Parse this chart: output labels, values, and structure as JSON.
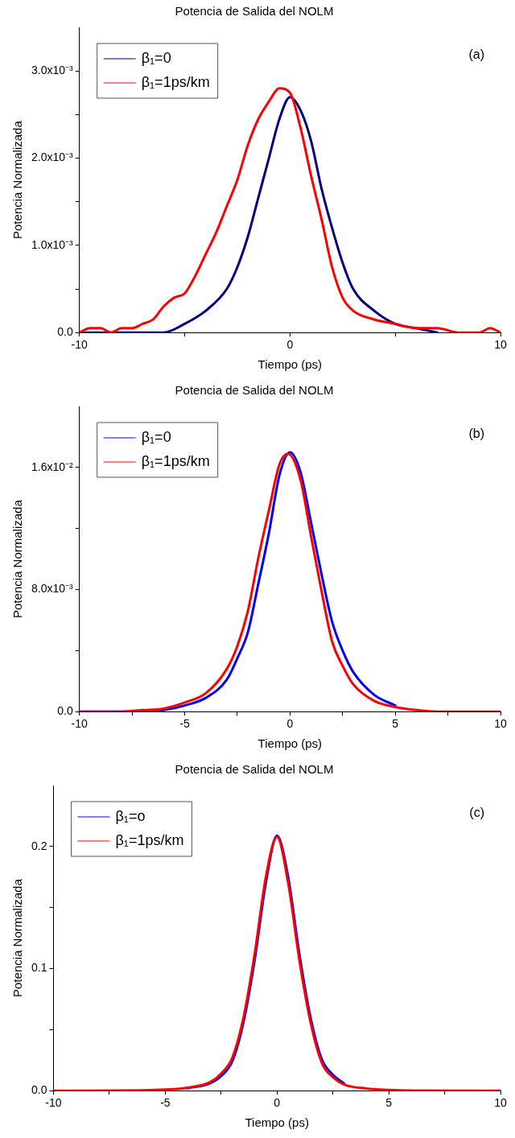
{
  "chart_data": [
    {
      "type": "line",
      "title": "Potencia de Salida del NOLM",
      "xlabel": "Tiempo (ps)",
      "ylabel": "Potencia Normalizada",
      "annotations": [
        "(a)"
      ],
      "legend": "top left",
      "grid": false,
      "marker": "none",
      "line_style": "solid",
      "xlim": [
        -10,
        10
      ],
      "xticks": [
        -10,
        {
          "value": -5,
          "label": null
        },
        0,
        {
          "value": 5,
          "label": null
        },
        10
      ],
      "ylim": [
        0,
        0.0035
      ],
      "yticks": [
        {
          "value": 0,
          "label": "0.0"
        },
        {
          "value": 0.0005,
          "label": null
        },
        {
          "value": 0.001,
          "label": "1.0x10⁻³"
        },
        {
          "value": 0.0015,
          "label": null
        },
        {
          "value": 0.002,
          "label": "2.0x10⁻³"
        },
        {
          "value": 0.0025,
          "label": null
        },
        {
          "value": 0.003,
          "label": "3.0x10⁻³"
        }
      ],
      "series": [
        {
          "name": "β₁=0",
          "color": "#000080",
          "x": [
            -10,
            -8,
            -6,
            -5,
            -4,
            -3,
            -2.5,
            -2,
            -1.5,
            -1,
            -0.5,
            0,
            0.5,
            1,
            1.5,
            2,
            2.5,
            3,
            4,
            5,
            6,
            7
          ],
          "values": [
            0,
            0,
            0,
            0.0001,
            0.00025,
            0.0005,
            0.00075,
            0.0011,
            0.00155,
            0.002,
            0.00245,
            0.0027,
            0.00255,
            0.0022,
            0.00165,
            0.0012,
            0.0008,
            0.0005,
            0.00025,
            0.0001,
            5e-05,
            0
          ]
        },
        {
          "name": "β₁=1ps/km",
          "color": "#ff0000",
          "x": [
            -10,
            -9.5,
            -9,
            -8.5,
            -8,
            -7.5,
            -7,
            -6.5,
            -6,
            -5.5,
            -5,
            -4.5,
            -4,
            -3.5,
            -3,
            -2.5,
            -2,
            -1.5,
            -1,
            -0.5,
            0,
            0.5,
            1,
            1.5,
            2,
            2.5,
            3,
            4,
            5,
            6,
            7,
            8,
            9,
            9.5,
            10
          ],
          "values": [
            0,
            5e-05,
            5e-05,
            0,
            5e-05,
            5e-05,
            0.0001,
            0.00015,
            0.0003,
            0.0004,
            0.00045,
            0.00065,
            0.0009,
            0.00115,
            0.00145,
            0.00175,
            0.00215,
            0.00245,
            0.00265,
            0.0028,
            0.00275,
            0.00235,
            0.0018,
            0.0013,
            0.00075,
            0.0004,
            0.00025,
            0.00015,
            0.0001,
            5e-05,
            5e-05,
            0,
            0,
            5e-05,
            0
          ]
        }
      ]
    },
    {
      "type": "line",
      "title": "Potencia de Salida del NOLM",
      "xlabel": "Tiempo (ps)",
      "ylabel": "Potencia Normalizada",
      "annotations": [
        "(b)"
      ],
      "legend": "top left",
      "grid": false,
      "marker": "none",
      "line_style": "solid",
      "xlim": [
        -10,
        10
      ],
      "xticks": [
        -10,
        {
          "value": -7.5,
          "label": null
        },
        -5,
        {
          "value": -2.5,
          "label": null
        },
        0,
        {
          "value": 2.5,
          "label": null
        },
        5,
        {
          "value": 7.5,
          "label": null
        },
        10
      ],
      "ylim": [
        0,
        0.02
      ],
      "yticks": [
        {
          "value": 0,
          "label": "0.0"
        },
        {
          "value": 0.004,
          "label": null
        },
        {
          "value": 0.008,
          "label": "8.0x10⁻³"
        },
        {
          "value": 0.012,
          "label": null
        },
        {
          "value": 0.016,
          "label": "1.6x10⁻²"
        }
      ],
      "series": [
        {
          "name": "β₁=0",
          "color": "#0000ff",
          "x": [
            -10,
            -8,
            -7,
            -6,
            -5,
            -4,
            -3,
            -2.5,
            -2,
            -1.5,
            -1,
            -0.5,
            0,
            0.5,
            1,
            1.5,
            2,
            2.5,
            3,
            4,
            5
          ],
          "values": [
            0,
            0,
            0,
            0.0001,
            0.0004,
            0.0009,
            0.0021,
            0.0035,
            0.0052,
            0.0084,
            0.0117,
            0.0155,
            0.017,
            0.0157,
            0.0124,
            0.009,
            0.0059,
            0.004,
            0.0026,
            0.0011,
            0.0004
          ]
        },
        {
          "name": "β₁=1ps/km",
          "color": "#ff0000",
          "x": [
            -10,
            -8,
            -7,
            -6,
            -5,
            -4,
            -3,
            -2.5,
            -2,
            -1.5,
            -1,
            -0.5,
            -0.1,
            0.5,
            1,
            1.5,
            2,
            2.5,
            3,
            4,
            5,
            6,
            7,
            8,
            10
          ],
          "values": [
            0,
            0,
            0.0001,
            0.0002,
            0.0006,
            0.0012,
            0.0028,
            0.0043,
            0.0066,
            0.0101,
            0.0132,
            0.0162,
            0.0169,
            0.0152,
            0.0115,
            0.0079,
            0.0046,
            0.003,
            0.0018,
            0.0007,
            0.0003,
            0.0001,
            0,
            0,
            0
          ]
        }
      ]
    },
    {
      "type": "line",
      "title": "Potencia de Salida del NOLM",
      "xlabel": "Tiempo (ps)",
      "ylabel": "Potencia Normalizada",
      "annotations": [
        "(c)"
      ],
      "legend": "top left",
      "grid": false,
      "marker": "none",
      "line_style": "solid",
      "xlim": [
        -10,
        10
      ],
      "xticks": [
        -10,
        {
          "value": -7.5,
          "label": null
        },
        -5,
        {
          "value": -2.5,
          "label": null
        },
        0,
        {
          "value": 2.5,
          "label": null
        },
        5,
        {
          "value": 7.5,
          "label": null
        },
        10
      ],
      "ylim": [
        0,
        0.25
      ],
      "yticks": [
        {
          "value": 0,
          "label": "0.0"
        },
        {
          "value": 0.05,
          "label": null
        },
        {
          "value": 0.1,
          "label": "0.1"
        },
        {
          "value": 0.15,
          "label": null
        },
        {
          "value": 0.2,
          "label": "0.2"
        }
      ],
      "series": [
        {
          "name": "β₁=o",
          "color": "#0000ff",
          "x": [
            -4,
            -3,
            -2.5,
            -2,
            -1.5,
            -1,
            -0.5,
            0,
            0.5,
            1,
            1.5,
            2,
            2.5,
            3
          ],
          "values": [
            0.002,
            0.006,
            0.012,
            0.024,
            0.056,
            0.107,
            0.17,
            0.209,
            0.175,
            0.112,
            0.06,
            0.026,
            0.013,
            0.006
          ]
        },
        {
          "name": "β₁=1ps/km",
          "color": "#ff0000",
          "x": [
            -10,
            -6,
            -5,
            -4,
            -3,
            -2.5,
            -2,
            -1.5,
            -1,
            -0.5,
            0,
            0.5,
            1,
            1.5,
            2,
            2.5,
            3,
            4,
            5,
            6,
            10
          ],
          "values": [
            0,
            0.0003,
            0.0009,
            0.0025,
            0.007,
            0.014,
            0.027,
            0.06,
            0.112,
            0.175,
            0.208,
            0.17,
            0.107,
            0.056,
            0.023,
            0.011,
            0.005,
            0.0018,
            0.0007,
            0.0002,
            0
          ]
        }
      ]
    }
  ]
}
